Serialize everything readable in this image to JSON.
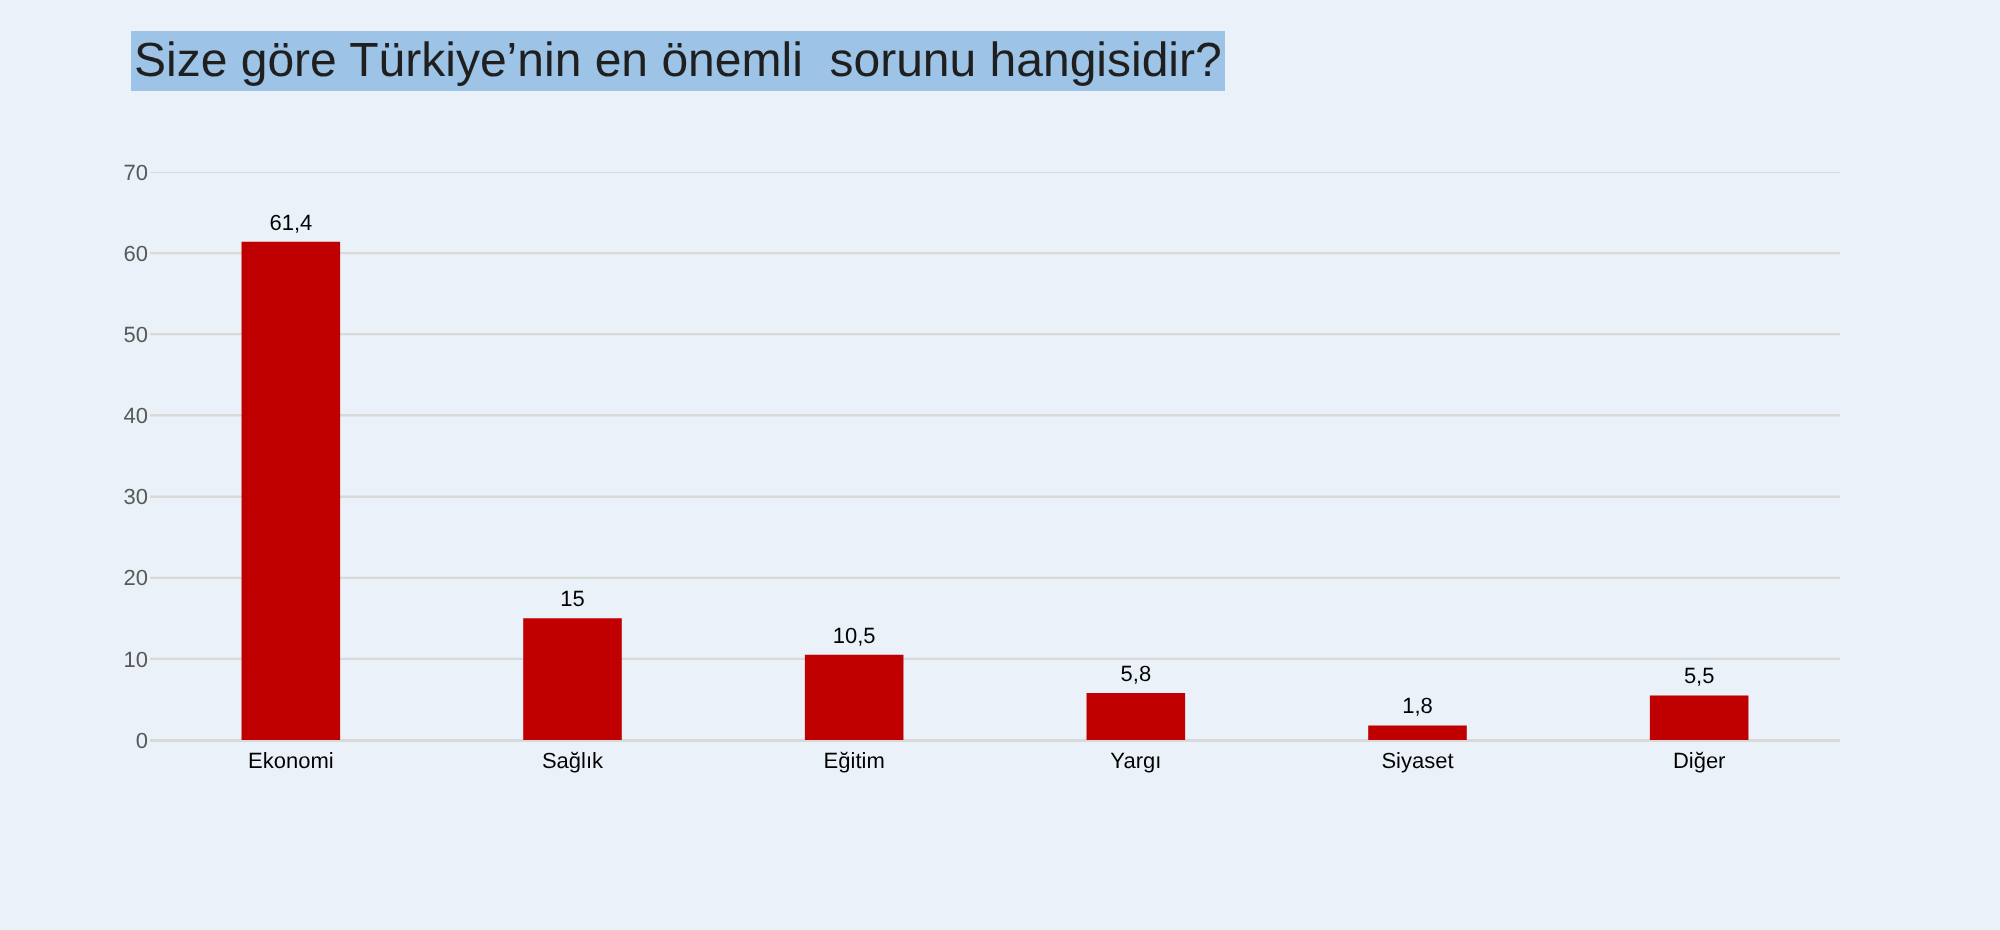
{
  "chart_data": {
    "type": "bar",
    "title": "Size göre Türkiye’nin en önemli  sorunu hangisidir?",
    "categories": [
      "Ekonomi",
      "Sağlık",
      "Eğitim",
      "Yargı",
      "Siyaset",
      "Diğer"
    ],
    "values": [
      61.4,
      15,
      10.5,
      5.8,
      1.8,
      5.5
    ],
    "value_labels": [
      "61,4",
      "15",
      "10,5",
      "5,8",
      "1,8",
      "5,5"
    ],
    "color": "#c00000",
    "ylim": [
      0,
      70
    ],
    "yticks": [
      0,
      10,
      20,
      30,
      40,
      50,
      60,
      70
    ],
    "grid": "y"
  }
}
